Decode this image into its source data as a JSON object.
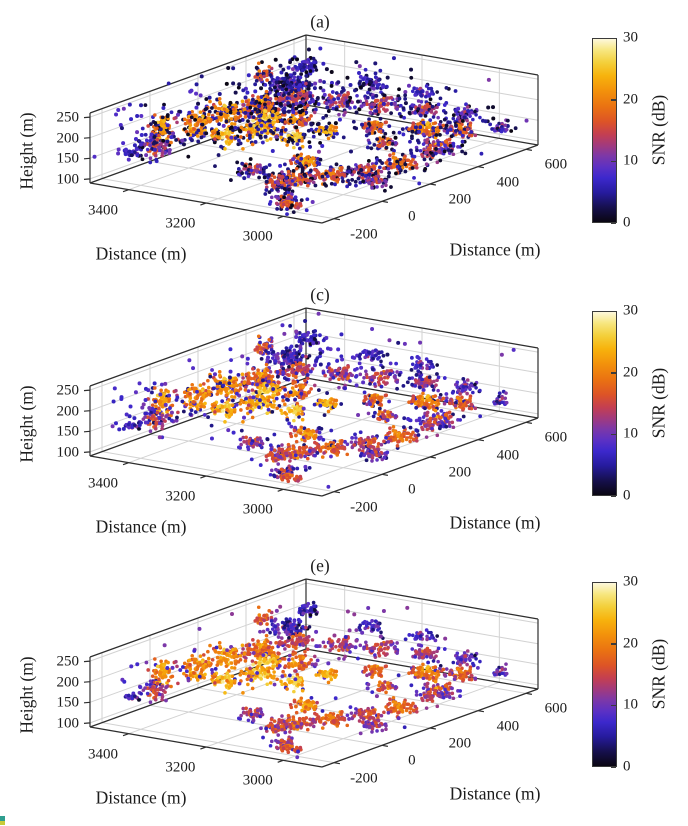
{
  "chart_data": {
    "type": "scatter",
    "projection": "3d",
    "panels": [
      {
        "label": "(a)",
        "seed": 11,
        "noise": {
          "scatter_count": 210,
          "scatter_snr": [
            0,
            11
          ],
          "dark_fraction": 0.62,
          "left_count": 40,
          "left_snr": [
            6,
            11
          ],
          "halo_fraction": 0.5,
          "halo_snr": [
            0,
            7
          ]
        }
      },
      {
        "label": "(c)",
        "seed": 23,
        "noise": {
          "scatter_count": 110,
          "scatter_snr": [
            3,
            11
          ],
          "dark_fraction": 0.25,
          "left_count": 30,
          "left_snr": [
            6,
            11
          ],
          "halo_fraction": 0.2,
          "halo_snr": [
            3,
            9
          ]
        }
      },
      {
        "label": "(e)",
        "seed": 37,
        "noise": {
          "scatter_count": 30,
          "scatter_snr": [
            6,
            12
          ],
          "dark_fraction": 0.08,
          "left_count": 7,
          "left_snr": [
            7,
            12
          ],
          "halo_fraction": 0.08,
          "halo_snr": [
            6,
            11
          ]
        }
      }
    ],
    "axes": {
      "x": {
        "label": "Distance (m)",
        "ticks": [
          3400,
          3200,
          3000
        ],
        "range": [
          2900,
          3500
        ]
      },
      "y": {
        "label": "Distance (m)",
        "ticks": [
          -200,
          0,
          200,
          400,
          600
        ],
        "range": [
          -250,
          650
        ]
      },
      "z": {
        "label": "Height (m)",
        "ticks": [
          100,
          150,
          200,
          250
        ],
        "range": [
          90,
          260
        ]
      }
    },
    "colorbar": {
      "label": "SNR (dB)",
      "ticks": [
        0,
        10,
        20,
        30
      ],
      "range": [
        0,
        30
      ],
      "stops": [
        [
          0,
          "#0a0612"
        ],
        [
          0.08,
          "#16104e"
        ],
        [
          0.16,
          "#261b9d"
        ],
        [
          0.24,
          "#3c28cc"
        ],
        [
          0.3,
          "#5c31c4"
        ],
        [
          0.36,
          "#7c38a8"
        ],
        [
          0.42,
          "#a23a7d"
        ],
        [
          0.48,
          "#c43f51"
        ],
        [
          0.55,
          "#dd5426"
        ],
        [
          0.63,
          "#ea7212"
        ],
        [
          0.72,
          "#f3930b"
        ],
        [
          0.8,
          "#f7b30d"
        ],
        [
          0.87,
          "#f3cf3a"
        ],
        [
          0.94,
          "#f7e781"
        ],
        [
          1,
          "#fdf8dc"
        ]
      ]
    },
    "grid_color": "#d2d2d2",
    "edge_color": "#2e2e2e",
    "cluster_seed": 7,
    "clusters_note": "estimated cluster centers: [x, y, z, spread_xy, spread_z, n_points, snr_db]",
    "clusters": [
      [
        3420,
        -110,
        160,
        14,
        10,
        45,
        14
      ],
      [
        3415,
        -85,
        205,
        12,
        14,
        55,
        21
      ],
      [
        3390,
        20,
        195,
        18,
        12,
        65,
        20
      ],
      [
        3365,
        110,
        205,
        20,
        12,
        75,
        21
      ],
      [
        3335,
        200,
        212,
        20,
        10,
        70,
        18
      ],
      [
        3305,
        295,
        215,
        18,
        10,
        60,
        15
      ],
      [
        3340,
        55,
        165,
        18,
        10,
        55,
        23
      ],
      [
        3305,
        145,
        172,
        20,
        10,
        65,
        23
      ],
      [
        3265,
        235,
        182,
        18,
        10,
        55,
        18
      ],
      [
        3320,
        310,
        242,
        16,
        8,
        45,
        6
      ],
      [
        3370,
        335,
        228,
        13,
        8,
        35,
        9
      ],
      [
        3245,
        385,
        200,
        18,
        10,
        50,
        13
      ],
      [
        3180,
        455,
        185,
        20,
        10,
        55,
        14
      ],
      [
        3105,
        515,
        172,
        18,
        8,
        50,
        12
      ],
      [
        3030,
        555,
        162,
        13,
        7,
        35,
        10
      ],
      [
        2985,
        465,
        152,
        18,
        8,
        50,
        16
      ],
      [
        3045,
        415,
        157,
        20,
        8,
        55,
        19
      ],
      [
        2960,
        345,
        142,
        18,
        8,
        45,
        15
      ],
      [
        3090,
        -55,
        127,
        20,
        8,
        60,
        16
      ],
      [
        3050,
        35,
        122,
        20,
        8,
        60,
        17
      ],
      [
        3010,
        125,
        118,
        18,
        8,
        55,
        15
      ],
      [
        2985,
        215,
        124,
        18,
        8,
        55,
        18
      ],
      [
        3125,
        45,
        142,
        15,
        7,
        45,
        21
      ],
      [
        3155,
        -125,
        152,
        15,
        7,
        40,
        13
      ],
      [
        2955,
        60,
        116,
        13,
        6,
        35,
        12
      ],
      [
        3445,
        -155,
        152,
        9,
        5,
        18,
        9
      ],
      [
        3460,
        -55,
        162,
        8,
        5,
        14,
        8
      ],
      [
        3235,
        175,
        152,
        13,
        7,
        40,
        25
      ],
      [
        3205,
        260,
        157,
        12,
        6,
        35,
        23
      ],
      [
        2915,
        515,
        158,
        9,
        5,
        18,
        10
      ],
      [
        3270,
        120,
        210,
        14,
        8,
        40,
        24
      ],
      [
        3350,
        240,
        185,
        14,
        8,
        40,
        20
      ],
      [
        3120,
        330,
        165,
        15,
        8,
        40,
        17
      ],
      [
        2945,
        272,
        148,
        14,
        7,
        40,
        13
      ],
      [
        3080,
        300,
        140,
        13,
        6,
        30,
        16
      ],
      [
        3230,
        480,
        225,
        15,
        8,
        35,
        7
      ],
      [
        3130,
        540,
        205,
        12,
        6,
        25,
        8
      ],
      [
        3445,
        380,
        228,
        10,
        12,
        30,
        17
      ],
      [
        3400,
        490,
        235,
        13,
        8,
        40,
        7
      ],
      [
        3130,
        -60,
        112,
        16,
        7,
        45,
        16
      ],
      [
        3010,
        -205,
        107,
        13,
        6,
        30,
        16
      ],
      [
        3060,
        -150,
        105,
        13,
        6,
        30,
        14
      ]
    ]
  },
  "corner_artifact": {
    "top_color": "#2f9e8f",
    "bottom_color": "#c8cc3a"
  }
}
